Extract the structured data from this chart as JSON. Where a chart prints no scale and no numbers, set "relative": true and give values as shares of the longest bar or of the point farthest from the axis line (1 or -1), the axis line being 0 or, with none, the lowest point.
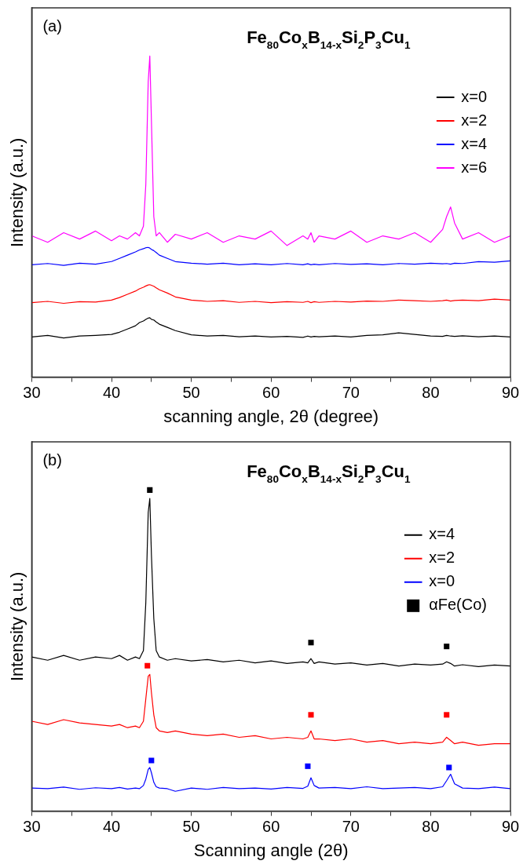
{
  "chart_data": [
    {
      "type": "line",
      "title": "Fe$_{80}$Co$_{x}$B$_{14-x}$Si$_{2}$P$_{3}$Cu$_{1}$",
      "xlabel": "scanning angle, 2θ (degree)",
      "ylabel": "Intensity (a.u.)",
      "annotations": [
        "(a)"
      ],
      "relative": true,
      "grid": false,
      "legend": "top right",
      "marker": "none",
      "line_style": "solid",
      "xlim": [
        30,
        90
      ],
      "xticks": [
        30,
        {
          "value": 35,
          "label": null
        },
        40,
        {
          "value": 45,
          "label": null
        },
        50,
        {
          "value": 55,
          "label": null
        },
        60,
        {
          "value": 65,
          "label": null
        },
        70,
        {
          "value": 75,
          "label": null
        },
        80,
        {
          "value": 85,
          "label": null
        },
        90
      ],
      "x": [
        30,
        32,
        34,
        36,
        38,
        40,
        41,
        42,
        43,
        43.5,
        44,
        44.3,
        44.6,
        44.8,
        45,
        45.3,
        45.6,
        46,
        47,
        48,
        50,
        52,
        54,
        56,
        58,
        60,
        62,
        64,
        64.6,
        65,
        65.4,
        66,
        68,
        70,
        72,
        74,
        76,
        78,
        80,
        81.5,
        82,
        82.5,
        83,
        84,
        86,
        88,
        90
      ],
      "series": [
        {
          "name": "x=0",
          "color": "#000000",
          "values": [
            0.125,
            0.13,
            0.122,
            0.128,
            0.13,
            0.133,
            0.14,
            0.15,
            0.16,
            0.17,
            0.175,
            0.18,
            0.184,
            0.185,
            0.18,
            0.178,
            0.172,
            0.165,
            0.155,
            0.145,
            0.132,
            0.128,
            0.13,
            0.126,
            0.128,
            0.125,
            0.127,
            0.124,
            0.128,
            0.125,
            0.127,
            0.126,
            0.128,
            0.125,
            0.13,
            0.132,
            0.138,
            0.133,
            0.128,
            0.127,
            0.13,
            0.128,
            0.127,
            0.129,
            0.126,
            0.128,
            0.125
          ]
        },
        {
          "name": "x=2",
          "color": "#ff0000",
          "values": [
            0.232,
            0.236,
            0.23,
            0.235,
            0.234,
            0.24,
            0.248,
            0.258,
            0.268,
            0.275,
            0.28,
            0.284,
            0.287,
            0.288,
            0.286,
            0.283,
            0.278,
            0.272,
            0.262,
            0.25,
            0.24,
            0.236,
            0.238,
            0.233,
            0.236,
            0.232,
            0.235,
            0.233,
            0.236,
            0.232,
            0.235,
            0.233,
            0.236,
            0.234,
            0.237,
            0.236,
            0.24,
            0.238,
            0.236,
            0.238,
            0.24,
            0.237,
            0.239,
            0.24,
            0.238,
            0.243,
            0.24
          ]
        },
        {
          "name": "x=4",
          "color": "#0000ff",
          "values": [
            0.35,
            0.354,
            0.348,
            0.355,
            0.352,
            0.36,
            0.37,
            0.38,
            0.39,
            0.396,
            0.4,
            0.403,
            0.404,
            0.402,
            0.398,
            0.394,
            0.388,
            0.38,
            0.37,
            0.36,
            0.355,
            0.352,
            0.355,
            0.35,
            0.353,
            0.35,
            0.354,
            0.35,
            0.353,
            0.35,
            0.352,
            0.35,
            0.354,
            0.351,
            0.353,
            0.35,
            0.354,
            0.352,
            0.355,
            0.353,
            0.354,
            0.352,
            0.355,
            0.354,
            0.36,
            0.358,
            0.362
          ]
        },
        {
          "name": "x=6",
          "color": "#ff00ff",
          "values": [
            0.44,
            0.42,
            0.45,
            0.43,
            0.455,
            0.425,
            0.44,
            0.43,
            0.45,
            0.44,
            0.47,
            0.6,
            0.92,
            1.0,
            0.8,
            0.5,
            0.44,
            0.45,
            0.42,
            0.445,
            0.43,
            0.45,
            0.42,
            0.44,
            0.43,
            0.455,
            0.41,
            0.44,
            0.43,
            0.45,
            0.42,
            0.44,
            0.43,
            0.455,
            0.42,
            0.44,
            0.43,
            0.45,
            0.42,
            0.46,
            0.5,
            0.53,
            0.48,
            0.43,
            0.45,
            0.42,
            0.44
          ]
        }
      ]
    },
    {
      "type": "line",
      "title": "Fe$_{80}$Co$_{x}$B$_{14-x}$Si$_{2}$P$_{3}$Cu$_{1}$",
      "xlabel": "Scanning angle (2θ)",
      "ylabel": "Intensity (a.u.)",
      "annotations": [
        "(b)"
      ],
      "relative": true,
      "grid": false,
      "legend": "top right",
      "marker": "none",
      "line_style": "solid",
      "xlim": [
        30,
        90
      ],
      "xticks": [
        30,
        {
          "value": 35,
          "label": null
        },
        40,
        {
          "value": 45,
          "label": null
        },
        50,
        {
          "value": 55,
          "label": null
        },
        60,
        {
          "value": 65,
          "label": null
        },
        70,
        {
          "value": 75,
          "label": null
        },
        80,
        {
          "value": 85,
          "label": null
        },
        90
      ],
      "x": [
        30,
        32,
        34,
        36,
        38,
        40,
        41,
        42,
        43,
        43.5,
        44,
        44.3,
        44.6,
        44.8,
        45,
        45.3,
        45.6,
        46,
        47,
        48,
        50,
        52,
        54,
        56,
        58,
        60,
        62,
        64,
        64.6,
        65,
        65.4,
        66,
        68,
        70,
        72,
        74,
        76,
        78,
        80,
        81.5,
        82,
        82.5,
        83,
        84,
        86,
        88,
        90
      ],
      "series": [
        {
          "name": "x=4",
          "color": "#000000",
          "values": [
            0.48,
            0.47,
            0.485,
            0.47,
            0.48,
            0.475,
            0.485,
            0.47,
            0.48,
            0.475,
            0.5,
            0.65,
            0.93,
            0.974,
            0.8,
            0.6,
            0.5,
            0.48,
            0.47,
            0.475,
            0.468,
            0.472,
            0.465,
            0.47,
            0.462,
            0.468,
            0.46,
            0.465,
            0.462,
            0.475,
            0.46,
            0.465,
            0.458,
            0.462,
            0.455,
            0.46,
            0.452,
            0.458,
            0.455,
            0.458,
            0.465,
            0.46,
            0.452,
            0.456,
            0.45,
            0.455,
            0.452
          ]
        },
        {
          "name": "x=2",
          "color": "#ff0000",
          "values": [
            0.28,
            0.27,
            0.285,
            0.275,
            0.27,
            0.265,
            0.27,
            0.26,
            0.265,
            0.26,
            0.28,
            0.35,
            0.42,
            0.426,
            0.37,
            0.3,
            0.26,
            0.25,
            0.245,
            0.25,
            0.24,
            0.235,
            0.24,
            0.23,
            0.235,
            0.225,
            0.23,
            0.225,
            0.23,
            0.25,
            0.225,
            0.225,
            0.22,
            0.225,
            0.215,
            0.22,
            0.21,
            0.215,
            0.21,
            0.215,
            0.23,
            0.22,
            0.21,
            0.215,
            0.205,
            0.21,
            0.21
          ]
        },
        {
          "name": "x=0",
          "color": "#0000ff",
          "values": [
            0.072,
            0.07,
            0.075,
            0.068,
            0.073,
            0.07,
            0.074,
            0.069,
            0.072,
            0.07,
            0.08,
            0.1,
            0.13,
            0.136,
            0.12,
            0.09,
            0.076,
            0.072,
            0.07,
            0.062,
            0.072,
            0.068,
            0.074,
            0.07,
            0.072,
            0.069,
            0.074,
            0.071,
            0.078,
            0.104,
            0.08,
            0.072,
            0.074,
            0.07,
            0.076,
            0.07,
            0.072,
            0.074,
            0.07,
            0.076,
            0.095,
            0.115,
            0.085,
            0.072,
            0.07,
            0.075,
            0.07
          ]
        },
        {
          "name": "αFe(Co)",
          "type": "scatter",
          "marker": "square",
          "color": "#000000",
          "x": [
            44.8,
            65,
            82,
            44.5,
            65,
            82,
            45,
            64.6,
            82.3
          ],
          "values": [
            1,
            0.525,
            0.513,
            0.453,
            0.3,
            0.3,
            0.158,
            0.14,
            0.136
          ],
          "colors": [
            "#000000",
            "#000000",
            "#000000",
            "#ff0000",
            "#ff0000",
            "#ff0000",
            "#0000ff",
            "#0000ff",
            "#0000ff"
          ]
        }
      ]
    }
  ]
}
